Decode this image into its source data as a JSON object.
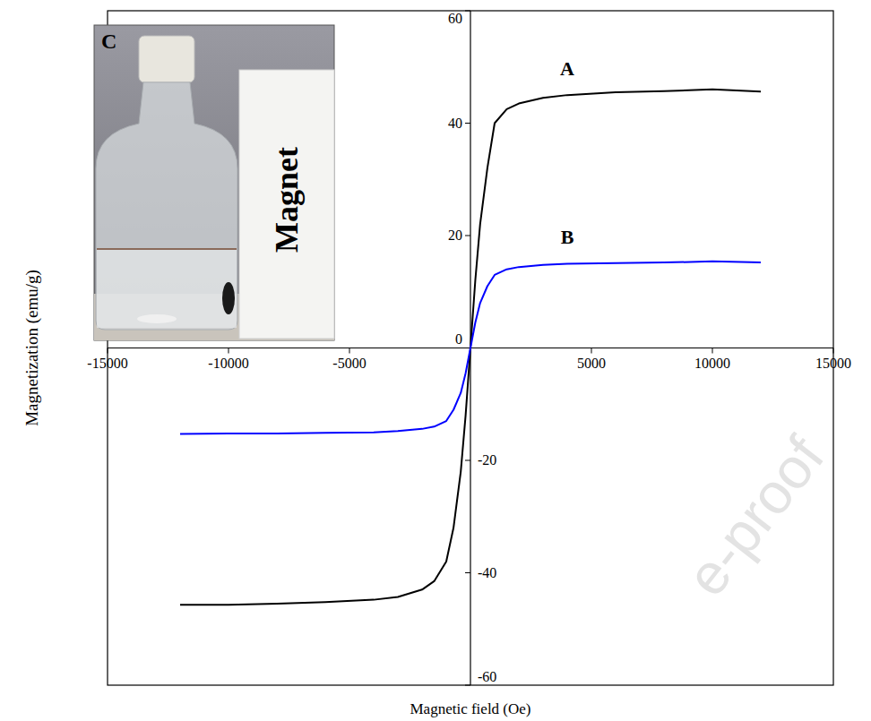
{
  "chart_data": {
    "type": "line",
    "x_label": "Magnetic field (Oe)",
    "y_label": "Magnetization (emu/g)",
    "x": [
      -12000,
      -10000,
      -8000,
      -6000,
      -4000,
      -3000,
      -2000,
      -1500,
      -1000,
      -700,
      -400,
      -200,
      0,
      200,
      400,
      700,
      1000,
      1500,
      2000,
      3000,
      4000,
      6000,
      8000,
      10000,
      12000
    ],
    "series": [
      {
        "name": "A",
        "color": "#000000",
        "values": [
          -45.7,
          -45.7,
          -45.5,
          -45.2,
          -44.8,
          -44.3,
          -43,
          -41.5,
          -38,
          -32,
          -22,
          -12,
          0,
          12,
          22,
          32,
          40,
          42.5,
          43.5,
          44.5,
          45,
          45.5,
          45.7,
          46,
          45.6
        ]
      },
      {
        "name": "B",
        "color": "#0000ff",
        "values": [
          -15.3,
          -15.2,
          -15.2,
          -15.1,
          -15,
          -14.8,
          -14.4,
          -14,
          -13,
          -11,
          -8,
          -4.5,
          0,
          4.5,
          8,
          11,
          13,
          14,
          14.4,
          14.8,
          15,
          15.1,
          15.2,
          15.4,
          15.2
        ]
      }
    ],
    "xlim": [
      -15000,
      15000
    ],
    "ylim": [
      -60,
      60
    ],
    "xticks": [
      -15000,
      -10000,
      -5000,
      5000,
      10000,
      15000
    ],
    "yticks": [
      -60,
      -40,
      -20,
      0,
      20,
      40,
      60
    ],
    "grid": false,
    "annotations": [
      "C",
      "Magnet",
      "e-proof"
    ]
  }
}
